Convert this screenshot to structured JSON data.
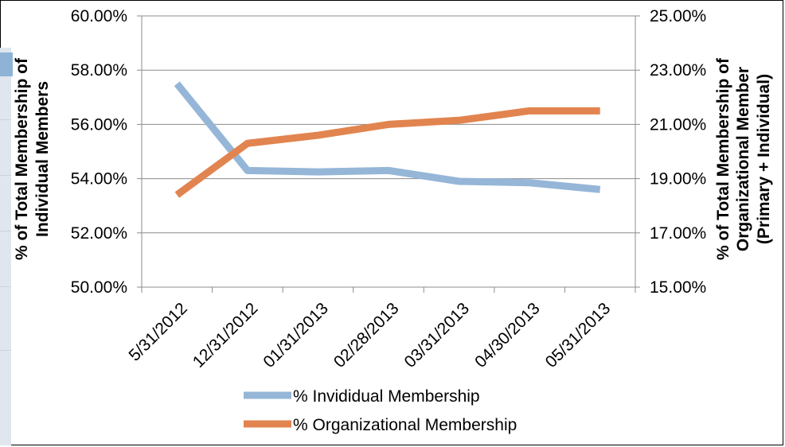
{
  "chart_data": {
    "type": "line",
    "categories": [
      "5/31/2012",
      "12/31/2012",
      "01/31/2013",
      "02/28/2013",
      "03/31/2013",
      "04/30/2013",
      "05/31/2013"
    ],
    "series": [
      {
        "name": "% Invididual Membership",
        "axis": "left",
        "color": "#95b6d7",
        "values": [
          57.5,
          54.3,
          54.25,
          54.3,
          53.9,
          53.85,
          53.6
        ]
      },
      {
        "name": "% Organizational Membership",
        "axis": "right",
        "color": "#e2844f",
        "values": [
          18.4,
          20.3,
          20.6,
          21.0,
          21.15,
          21.5,
          21.5
        ]
      }
    ],
    "y_left": {
      "label_lines": [
        "% of Total Membership of",
        "Individual Members"
      ],
      "ylim": [
        50,
        60
      ],
      "ticks": [
        "50.00%",
        "52.00%",
        "54.00%",
        "56.00%",
        "58.00%",
        "60.00%"
      ]
    },
    "y_right": {
      "label_lines": [
        "% of Total Membership of",
        "Organizational Member",
        "(Primary + Individual)"
      ],
      "ylim": [
        15,
        25
      ],
      "ticks": [
        "15.00%",
        "17.00%",
        "19.00%",
        "21.00%",
        "23.00%",
        "25.00%"
      ]
    },
    "grid": true,
    "legend_placement": "bottom"
  }
}
